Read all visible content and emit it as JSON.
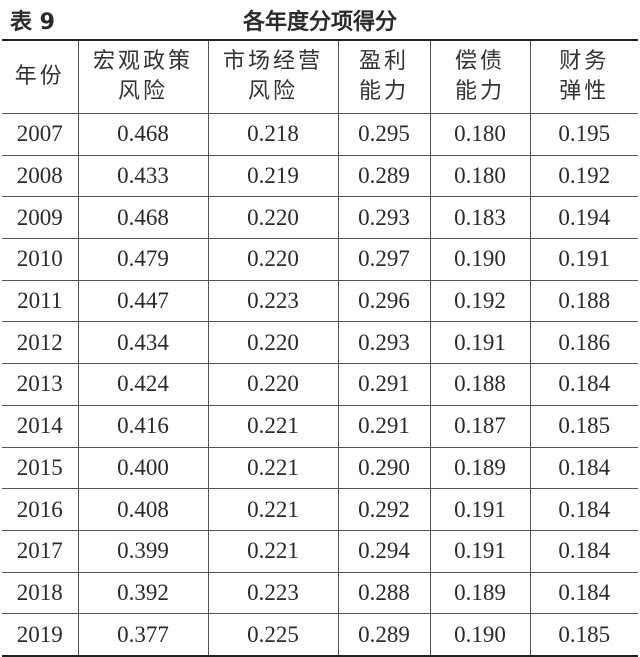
{
  "header": {
    "label": "表 9",
    "title": "各年度分项得分"
  },
  "table": {
    "columns": [
      [
        "年份"
      ],
      [
        "宏观政策",
        "风险"
      ],
      [
        "市场经营",
        "风险"
      ],
      [
        "盈利",
        "能力"
      ],
      [
        "偿债",
        "能力"
      ],
      [
        "财务",
        "弹性"
      ]
    ],
    "rows": [
      [
        "2007",
        "0.468",
        "0.218",
        "0.295",
        "0.180",
        "0.195"
      ],
      [
        "2008",
        "0.433",
        "0.219",
        "0.289",
        "0.180",
        "0.192"
      ],
      [
        "2009",
        "0.468",
        "0.220",
        "0.293",
        "0.183",
        "0.194"
      ],
      [
        "2010",
        "0.479",
        "0.220",
        "0.297",
        "0.190",
        "0.191"
      ],
      [
        "2011",
        "0.447",
        "0.223",
        "0.296",
        "0.192",
        "0.188"
      ],
      [
        "2012",
        "0.434",
        "0.220",
        "0.293",
        "0.191",
        "0.186"
      ],
      [
        "2013",
        "0.424",
        "0.220",
        "0.291",
        "0.188",
        "0.184"
      ],
      [
        "2014",
        "0.416",
        "0.221",
        "0.291",
        "0.187",
        "0.185"
      ],
      [
        "2015",
        "0.400",
        "0.221",
        "0.290",
        "0.189",
        "0.184"
      ],
      [
        "2016",
        "0.408",
        "0.221",
        "0.292",
        "0.191",
        "0.184"
      ],
      [
        "2017",
        "0.399",
        "0.221",
        "0.294",
        "0.191",
        "0.184"
      ],
      [
        "2018",
        "0.392",
        "0.223",
        "0.288",
        "0.189",
        "0.184"
      ],
      [
        "2019",
        "0.377",
        "0.225",
        "0.289",
        "0.190",
        "0.185"
      ]
    ]
  }
}
